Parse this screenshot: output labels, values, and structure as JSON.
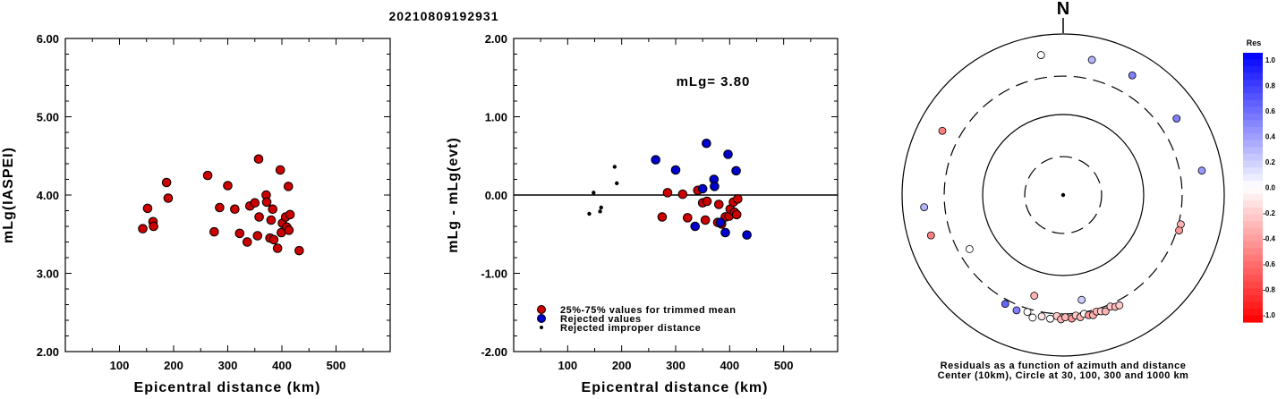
{
  "title": "20210809192931",
  "colors": {
    "accepted": "#cc0000",
    "rejected": "#0000cc",
    "improper": "#000000",
    "neutral": "#ffffff"
  },
  "chart_data": [
    {
      "type": "scatter",
      "xlabel": "Epicentral distance (km)",
      "ylabel": "mLg(IASPEI)",
      "xlim": [
        0,
        600
      ],
      "ylim": [
        2.0,
        6.0
      ],
      "xticks": [
        "100",
        "200",
        "300",
        "400",
        "500"
      ],
      "yticks": [
        "2.00",
        "3.00",
        "4.00",
        "5.00",
        "6.00"
      ],
      "series": [
        {
          "style": "accepted",
          "points": [
            [
              143,
              3.57
            ],
            [
              152,
              3.83
            ],
            [
              162,
              3.66
            ],
            [
              163,
              3.6
            ],
            [
              187,
              4.16
            ],
            [
              190,
              3.96
            ],
            [
              263,
              4.25
            ],
            [
              275,
              3.53
            ],
            [
              285,
              3.84
            ],
            [
              300,
              4.12
            ],
            [
              313,
              3.82
            ],
            [
              322,
              3.51
            ],
            [
              336,
              3.4
            ],
            [
              341,
              3.86
            ],
            [
              350,
              3.9
            ],
            [
              355,
              3.48
            ],
            [
              357,
              4.46
            ],
            [
              358,
              3.72
            ],
            [
              371,
              4.0
            ],
            [
              372,
              3.91
            ],
            [
              378,
              3.45
            ],
            [
              380,
              3.68
            ],
            [
              383,
              3.82
            ],
            [
              385,
              3.43
            ],
            [
              392,
              3.32
            ],
            [
              397,
              4.32
            ],
            [
              399,
              3.52
            ],
            [
              401,
              3.64
            ],
            [
              407,
              3.72
            ],
            [
              409,
              3.59
            ],
            [
              412,
              4.11
            ],
            [
              413,
              3.55
            ],
            [
              415,
              3.75
            ],
            [
              432,
              3.29
            ]
          ]
        }
      ]
    },
    {
      "type": "scatter",
      "xlabel": "Epicentral distance (km)",
      "ylabel": "mLg - mLg(evt)",
      "xlim": [
        0,
        600
      ],
      "ylim": [
        -2.0,
        2.0
      ],
      "xticks": [
        "100",
        "200",
        "300",
        "400",
        "500"
      ],
      "yticks": [
        "-2.00",
        "-1.00",
        "0.00",
        "1.00",
        "2.00"
      ],
      "annotation": "mLg= 3.80",
      "legend": [
        {
          "style": "accepted",
          "label": "25%-75% values for trimmed mean"
        },
        {
          "style": "rejected",
          "label": "Rejected values"
        },
        {
          "style": "improper",
          "label": "Rejected improper distance"
        }
      ],
      "series": [
        {
          "style": "accepted",
          "points": [
            [
              275,
              -0.28
            ],
            [
              285,
              0.03
            ],
            [
              313,
              0.01
            ],
            [
              322,
              -0.29
            ],
            [
              341,
              0.06
            ],
            [
              350,
              -0.1
            ],
            [
              355,
              -0.32
            ],
            [
              358,
              -0.08
            ],
            [
              378,
              -0.35
            ],
            [
              380,
              -0.12
            ],
            [
              385,
              -0.37
            ],
            [
              392,
              -0.28
            ],
            [
              399,
              -0.27
            ],
            [
              401,
              -0.18
            ],
            [
              407,
              -0.09
            ],
            [
              409,
              -0.22
            ],
            [
              413,
              -0.25
            ],
            [
              415,
              -0.05
            ]
          ]
        },
        {
          "style": "rejected",
          "points": [
            [
              263,
              0.45
            ],
            [
              300,
              0.32
            ],
            [
              336,
              -0.4
            ],
            [
              350,
              0.08
            ],
            [
              357,
              0.66
            ],
            [
              371,
              0.2
            ],
            [
              372,
              0.11
            ],
            [
              383,
              -0.35
            ],
            [
              392,
              -0.48
            ],
            [
              397,
              0.52
            ],
            [
              412,
              0.31
            ],
            [
              432,
              -0.51
            ]
          ]
        },
        {
          "style": "improper",
          "points": [
            [
              140,
              -0.24
            ],
            [
              148,
              0.03
            ],
            [
              160,
              -0.21
            ],
            [
              162,
              -0.16
            ],
            [
              187,
              0.36
            ],
            [
              191,
              0.15
            ]
          ]
        }
      ]
    },
    {
      "type": "polar_scatter",
      "north_label": "N",
      "caption_line1": "Residuals as a function of azimuth and distance",
      "caption_line2": "Center (10km), Circle at 30, 100, 300 and 1000 km",
      "rings_km": [
        10,
        30,
        100,
        300,
        1000
      ],
      "points": [
        {
          "az": 351,
          "dist_km": 575,
          "res": 0.0
        },
        {
          "az": 12,
          "dist_km": 520,
          "res": 0.3
        },
        {
          "az": 30,
          "dist_km": 520,
          "res": 0.5
        },
        {
          "az": 56,
          "dist_km": 500,
          "res": 0.5
        },
        {
          "az": 80,
          "dist_km": 560,
          "res": 0.4
        },
        {
          "az": 104,
          "dist_km": 320,
          "res": -0.3
        },
        {
          "az": 107,
          "dist_km": 320,
          "res": -0.4
        },
        {
          "az": 298,
          "dist_km": 500,
          "res": -0.5
        },
        {
          "az": 265,
          "dist_km": 540,
          "res": 0.3
        },
        {
          "az": 253,
          "dist_km": 520,
          "res": -0.5
        },
        {
          "az": 240,
          "dist_km": 220,
          "res": 0.0
        },
        {
          "az": 196,
          "dist_km": 200,
          "res": -0.3
        },
        {
          "az": 170,
          "dist_km": 210,
          "res": 0.2
        },
        {
          "az": 208,
          "dist_km": 340,
          "res": 0.6
        },
        {
          "az": 202,
          "dist_km": 350,
          "res": 0.5
        },
        {
          "az": 197,
          "dist_km": 330,
          "res": 0.0
        },
        {
          "az": 190,
          "dist_km": 340,
          "res": -0.1
        },
        {
          "az": 186,
          "dist_km": 350,
          "res": 0.0
        },
        {
          "az": 183,
          "dist_km": 320,
          "res": -0.2
        },
        {
          "az": 181,
          "dist_km": 350,
          "res": -0.3
        },
        {
          "az": 179,
          "dist_km": 330,
          "res": -0.3
        },
        {
          "az": 176,
          "dist_km": 345,
          "res": -0.4
        },
        {
          "az": 174,
          "dist_km": 320,
          "res": -0.2
        },
        {
          "az": 172,
          "dist_km": 340,
          "res": -0.3
        },
        {
          "az": 170,
          "dist_km": 315,
          "res": 0.0
        },
        {
          "az": 168,
          "dist_km": 335,
          "res": -0.4
        },
        {
          "az": 166,
          "dist_km": 345,
          "res": -0.3
        },
        {
          "az": 164,
          "dist_km": 320,
          "res": -0.3
        },
        {
          "az": 162,
          "dist_km": 330,
          "res": -0.2
        },
        {
          "az": 160,
          "dist_km": 345,
          "res": -0.3
        },
        {
          "az": 157,
          "dist_km": 320,
          "res": -0.2
        },
        {
          "az": 155,
          "dist_km": 340,
          "res": -0.3
        },
        {
          "az": 153,
          "dist_km": 345,
          "res": -0.2
        },
        {
          "az": 194,
          "dist_km": 370,
          "res": 0.0
        }
      ],
      "colorbar": {
        "title": "Res",
        "ticks": [
          "1.0",
          "0.8",
          "0.6",
          "0.4",
          "0.2",
          "0.0",
          "-0.2",
          "-0.4",
          "-0.6",
          "-0.8",
          "-1.0"
        ]
      }
    }
  ]
}
